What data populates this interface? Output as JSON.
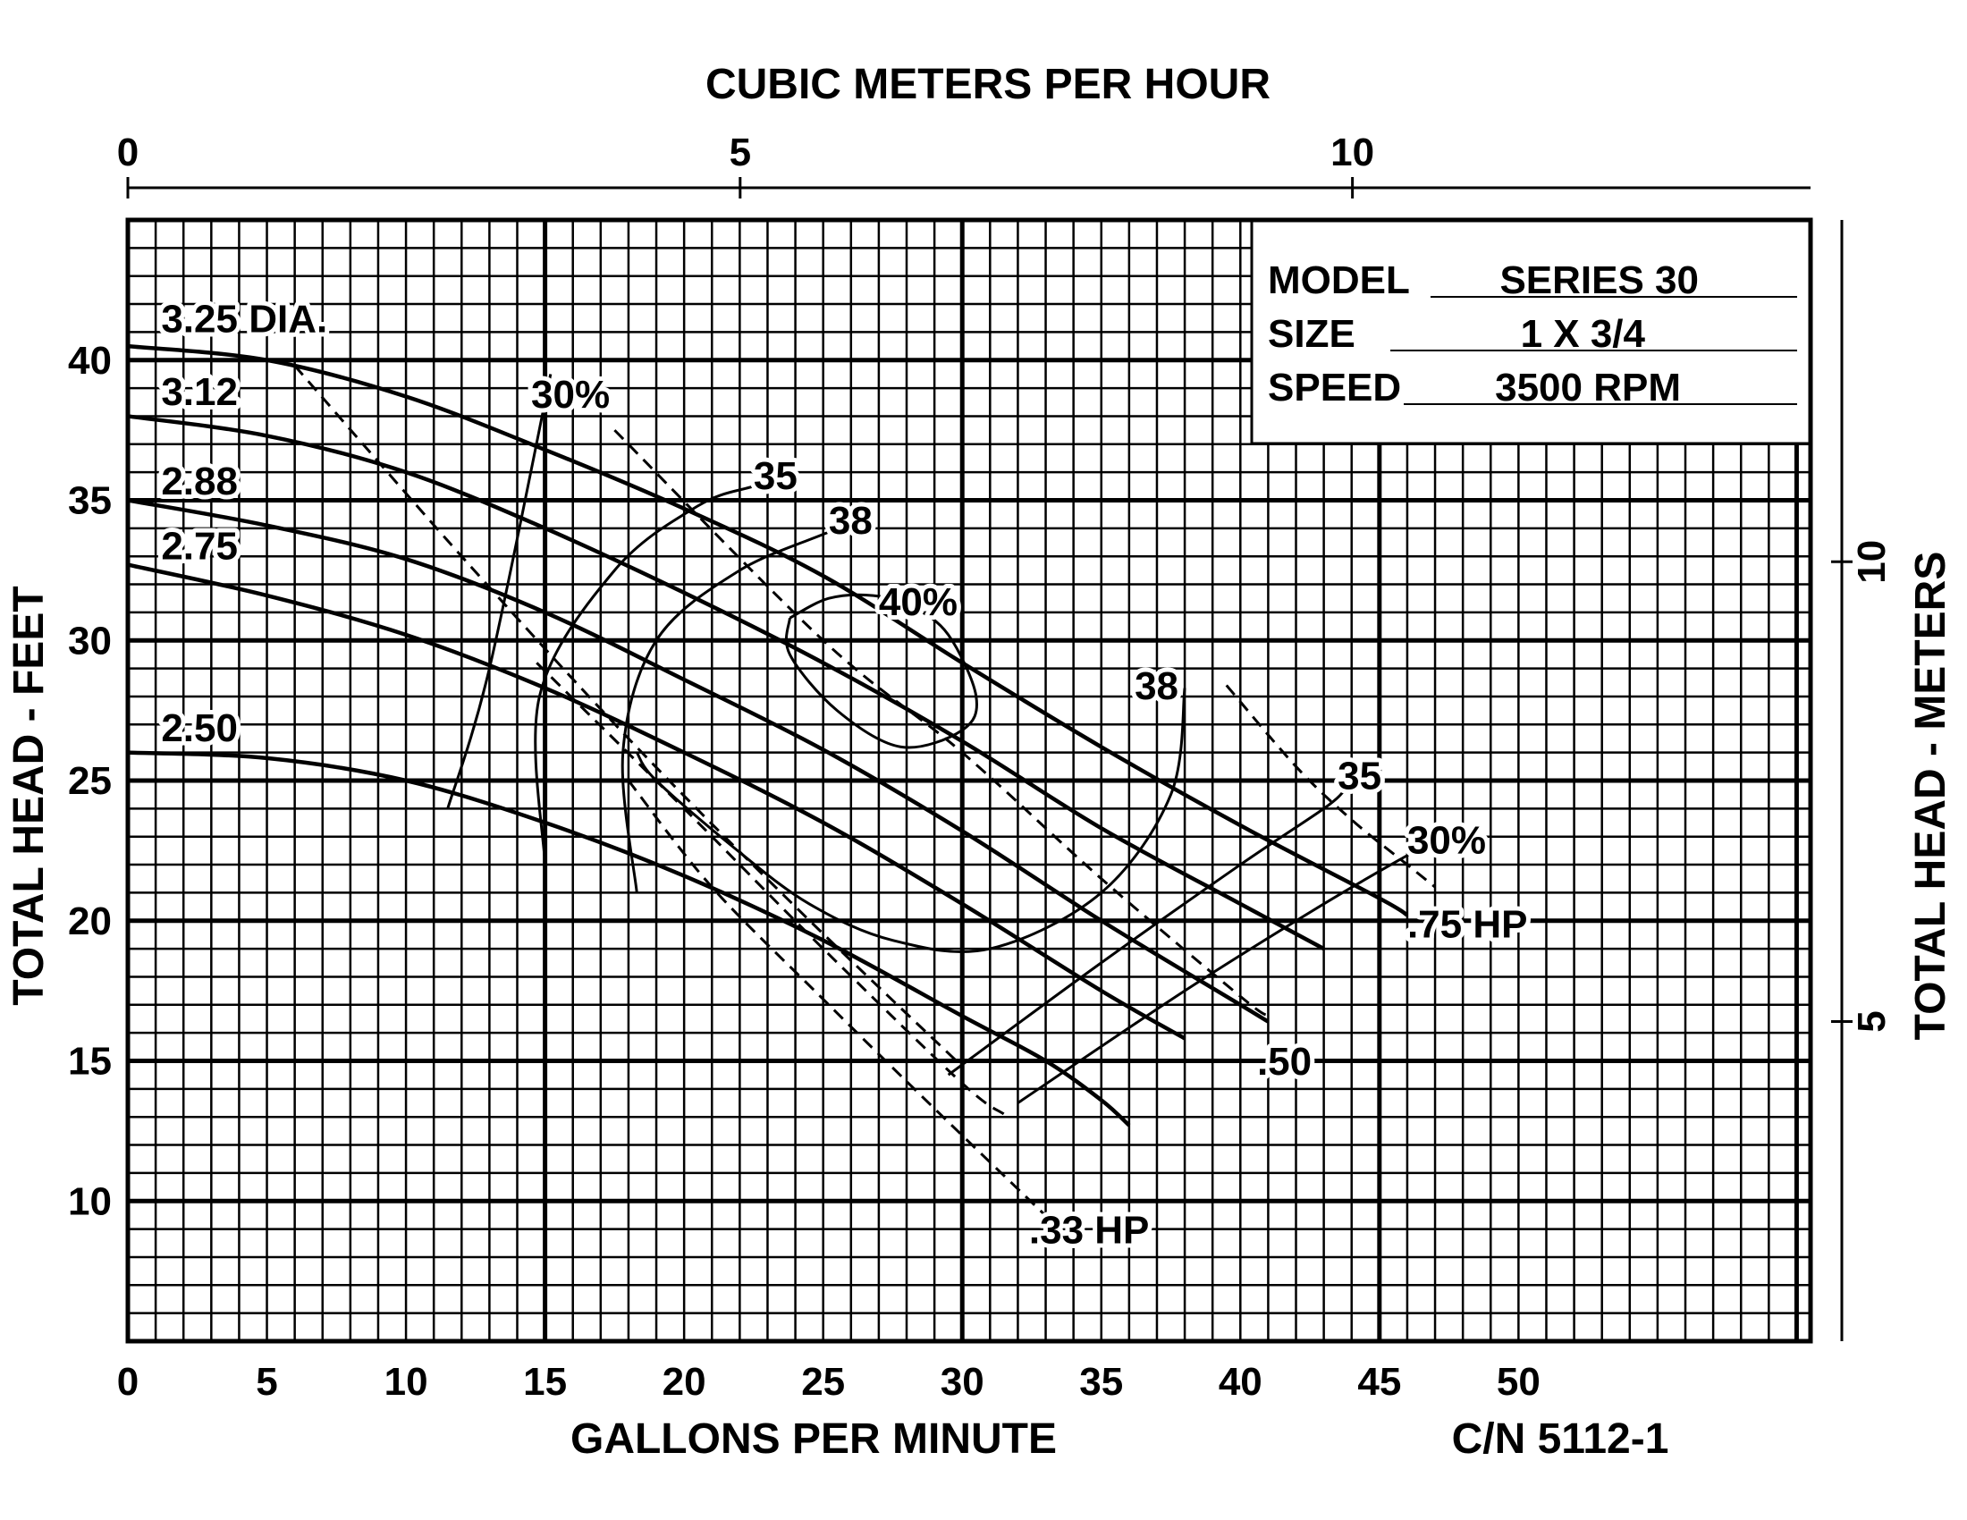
{
  "chart_data": {
    "type": "line",
    "xlabel": "GALLONS PER MINUTE",
    "ylabel": "TOTAL HEAD - FEET",
    "x2label": "CUBIC METERS PER HOUR",
    "y2label": "TOTAL HEAD - METERS",
    "catalog_number": "C/N 5112-1",
    "xlim": [
      0,
      60.5
    ],
    "ylim": [
      5,
      45
    ],
    "x_ticks": [
      "0",
      "5",
      "10",
      "15",
      "20",
      "25",
      "30",
      "35",
      "40",
      "45",
      "50"
    ],
    "y_ticks": [
      "10",
      "15",
      "20",
      "25",
      "30",
      "35",
      "40"
    ],
    "x2_ticks": [
      "0",
      "5",
      "10"
    ],
    "y2_ticks": [
      "5",
      "10"
    ],
    "info_box": {
      "model_label": "MODEL",
      "model_value": "SERIES 30",
      "size_label": "SIZE",
      "size_value": "1 X 3/4",
      "speed_label": "SPEED",
      "speed_value": "3500 RPM"
    },
    "impeller_curves": [
      {
        "name": "3.25 DIA.",
        "points": [
          [
            0,
            40.5
          ],
          [
            5,
            40.0
          ],
          [
            10,
            38.7
          ],
          [
            15,
            36.8
          ],
          [
            20,
            34.7
          ],
          [
            25,
            32.3
          ],
          [
            30,
            29.2
          ],
          [
            35,
            26.2
          ],
          [
            40,
            23.4
          ],
          [
            45,
            20.8
          ],
          [
            46,
            20.2
          ]
        ]
      },
      {
        "name": "3.12",
        "points": [
          [
            0,
            38.0
          ],
          [
            5,
            37.3
          ],
          [
            10,
            36.0
          ],
          [
            15,
            34.0
          ],
          [
            20,
            31.7
          ],
          [
            25,
            29.2
          ],
          [
            30,
            26.4
          ],
          [
            35,
            23.3
          ],
          [
            40,
            20.6
          ],
          [
            43,
            19.0
          ]
        ]
      },
      {
        "name": "2.88",
        "points": [
          [
            0,
            35.0
          ],
          [
            5,
            34.1
          ],
          [
            10,
            32.9
          ],
          [
            15,
            31.0
          ],
          [
            20,
            28.6
          ],
          [
            25,
            26.1
          ],
          [
            30,
            23.2
          ],
          [
            35,
            20.0
          ],
          [
            40,
            17.0
          ],
          [
            41,
            16.4
          ]
        ]
      },
      {
        "name": "2.75",
        "points": [
          [
            0,
            32.7
          ],
          [
            5,
            31.6
          ],
          [
            10,
            30.2
          ],
          [
            15,
            28.3
          ],
          [
            20,
            26.0
          ],
          [
            25,
            23.5
          ],
          [
            30,
            20.6
          ],
          [
            35,
            17.5
          ],
          [
            38,
            15.8
          ]
        ]
      },
      {
        "name": "2.50",
        "points": [
          [
            0,
            26.0
          ],
          [
            5,
            25.8
          ],
          [
            10,
            25.0
          ],
          [
            15,
            23.5
          ],
          [
            20,
            21.6
          ],
          [
            25,
            19.3
          ],
          [
            30,
            16.6
          ],
          [
            33,
            15.0
          ],
          [
            35,
            13.6
          ],
          [
            36,
            12.7
          ]
        ]
      }
    ],
    "efficiency_curves": [
      {
        "name": "30%",
        "points": [
          [
            11.5,
            24.0
          ],
          [
            13,
            29.0
          ],
          [
            15.2,
            39.5
          ]
        ]
      },
      {
        "name": "35",
        "points": [
          [
            15,
            22.0
          ],
          [
            14.8,
            28.0
          ],
          [
            17.5,
            32.5
          ],
          [
            20.5,
            34.8
          ],
          [
            22.5,
            35.5
          ],
          [
            24,
            35.9
          ]
        ]
      },
      {
        "name": "38",
        "points": [
          [
            18.3,
            21.0
          ],
          [
            17.8,
            26.0
          ],
          [
            19,
            30.0
          ],
          [
            22,
            32.5
          ],
          [
            25.5,
            34.0
          ],
          [
            25.8,
            34.5
          ]
        ]
      },
      {
        "name": "40%",
        "points": [
          [
            23.8,
            30.8
          ],
          [
            23.8,
            29.5
          ],
          [
            25.5,
            27.5
          ],
          [
            27.8,
            26.2
          ],
          [
            30,
            26.8
          ],
          [
            30.5,
            28.0
          ],
          [
            29.5,
            30.2
          ],
          [
            28.2,
            31.2
          ],
          [
            26.8,
            31.6
          ],
          [
            25.2,
            31.5
          ],
          [
            23.8,
            30.8
          ]
        ]
      },
      {
        "name": "38",
        "points": [
          [
            38,
            28.3
          ],
          [
            37.5,
            24.5
          ],
          [
            35,
            21.0
          ],
          [
            31,
            19.0
          ],
          [
            27.5,
            19.3
          ],
          [
            24.5,
            20.6
          ],
          [
            21.8,
            22.6
          ],
          [
            19,
            25.0
          ],
          [
            18.3,
            26.0
          ]
        ]
      },
      {
        "name": "35",
        "points": [
          [
            29.5,
            14.5
          ],
          [
            35,
            18.5
          ],
          [
            40,
            22.0
          ],
          [
            43,
            24.0
          ],
          [
            43.7,
            24.6
          ]
        ]
      },
      {
        "name": "30%",
        "points": [
          [
            32,
            13.5
          ],
          [
            38,
            17.5
          ],
          [
            43,
            20.6
          ],
          [
            46.3,
            22.5
          ]
        ]
      }
    ],
    "power_curves": [
      {
        "name": ".33 HP",
        "points": [
          [
            18,
            25.0
          ],
          [
            21,
            21.2
          ],
          [
            25,
            17.2
          ],
          [
            29,
            13.3
          ],
          [
            33.5,
            9.0
          ]
        ]
      },
      {
        "name": ".50",
        "points": [
          [
            14.7,
            29.2
          ],
          [
            20,
            24.0
          ],
          [
            25,
            19.0
          ],
          [
            30,
            14.2
          ],
          [
            31.5,
            13.1
          ]
        ]
      },
      {
        "name": ".75 HP",
        "points": [
          [
            6,
            39.8
          ],
          [
            12,
            33.0
          ],
          [
            18,
            26.5
          ],
          [
            24,
            20.5
          ],
          [
            30,
            14.8
          ]
        ]
      },
      {
        "name": "",
        "points": [
          [
            17.5,
            37.5
          ],
          [
            25,
            30.0
          ],
          [
            30,
            26.0
          ],
          [
            35,
            21.5
          ],
          [
            40,
            17.3
          ],
          [
            41,
            16.6
          ]
        ]
      },
      {
        "name": "",
        "points": [
          [
            39.5,
            28.4
          ],
          [
            42,
            25.5
          ],
          [
            44,
            23.6
          ],
          [
            46,
            22.0
          ],
          [
            47,
            21.2
          ]
        ]
      }
    ],
    "curve_labels": [
      {
        "text": "3.25 DIA.",
        "x": 1.2,
        "y": 41.0
      },
      {
        "text": "3.12",
        "x": 1.2,
        "y": 38.4
      },
      {
        "text": "2.88",
        "x": 1.2,
        "y": 35.2
      },
      {
        "text": "2.75",
        "x": 1.2,
        "y": 32.9
      },
      {
        "text": "2.50",
        "x": 1.2,
        "y": 26.4
      },
      {
        "text": "30%",
        "x": 14.5,
        "y": 38.3
      },
      {
        "text": "35",
        "x": 22.5,
        "y": 35.4
      },
      {
        "text": "38",
        "x": 25.2,
        "y": 33.8
      },
      {
        "text": "40%",
        "x": 27.0,
        "y": 30.9
      },
      {
        "text": "38",
        "x": 36.2,
        "y": 27.9
      },
      {
        "text": "35",
        "x": 43.5,
        "y": 24.7
      },
      {
        "text": "30%",
        "x": 46.0,
        "y": 22.4
      },
      {
        "text": ".75 HP",
        "x": 46.0,
        "y": 19.4
      },
      {
        "text": ".50",
        "x": 40.6,
        "y": 14.5
      },
      {
        "text": ".33 HP",
        "x": 32.4,
        "y": 8.5
      }
    ]
  }
}
